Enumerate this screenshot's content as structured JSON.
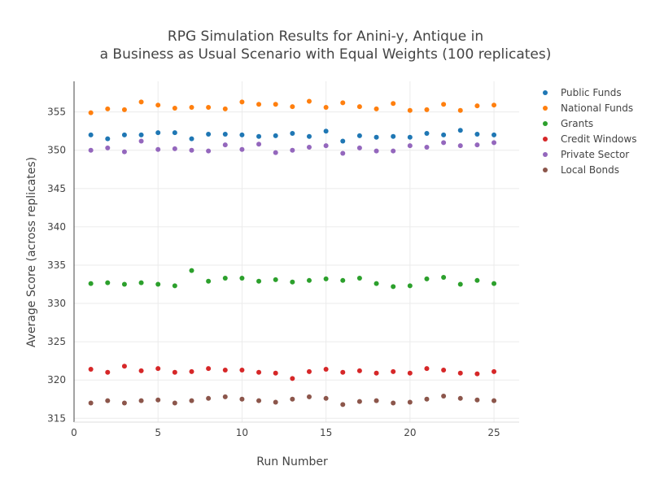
{
  "chart_data": {
    "type": "scatter",
    "title_lines": [
      "RPG Simulation Results for Anini-y, Antique in",
      "a Business as Usual Scenario with Equal Weights (100 replicates)"
    ],
    "xlabel": "Run Number",
    "ylabel": "Average Score (across replicates)",
    "xlim": [
      0,
      26.5
    ],
    "ylim": [
      314.5,
      359
    ],
    "xticks": [
      0,
      5,
      10,
      15,
      20,
      25
    ],
    "yticks": [
      315,
      320,
      325,
      330,
      335,
      340,
      345,
      350,
      355
    ],
    "grid": true,
    "legend_position": "top-right",
    "x": [
      1,
      2,
      3,
      4,
      5,
      6,
      7,
      8,
      9,
      10,
      11,
      12,
      13,
      14,
      15,
      16,
      17,
      18,
      19,
      20,
      21,
      22,
      23,
      24,
      25
    ],
    "series": [
      {
        "name": "Public Funds",
        "color": "#1f77b4",
        "values": [
          352.0,
          351.5,
          352.0,
          352.0,
          352.3,
          352.3,
          351.5,
          352.1,
          352.1,
          352.0,
          351.8,
          351.9,
          352.2,
          351.8,
          352.5,
          351.2,
          351.9,
          351.7,
          351.8,
          351.7,
          352.2,
          352.0,
          352.6,
          352.1,
          352.0
        ]
      },
      {
        "name": "National Funds",
        "color": "#ff7f0e",
        "values": [
          354.9,
          355.4,
          355.3,
          356.3,
          355.9,
          355.5,
          355.6,
          355.6,
          355.4,
          356.3,
          356.0,
          356.0,
          355.7,
          356.4,
          355.6,
          356.2,
          355.7,
          355.4,
          356.1,
          355.2,
          355.3,
          356.0,
          355.2,
          355.8,
          355.9
        ]
      },
      {
        "name": "Grants",
        "color": "#2ca02c",
        "values": [
          332.6,
          332.7,
          332.5,
          332.7,
          332.5,
          332.3,
          334.3,
          332.9,
          333.3,
          333.3,
          332.9,
          333.1,
          332.8,
          333.0,
          333.2,
          333.0,
          333.3,
          332.6,
          332.2,
          332.3,
          333.2,
          333.4,
          332.5,
          333.0,
          332.6
        ]
      },
      {
        "name": "Credit Windows",
        "color": "#d62728",
        "values": [
          321.4,
          321.0,
          321.8,
          321.2,
          321.5,
          321.0,
          321.1,
          321.5,
          321.3,
          321.3,
          321.0,
          320.9,
          320.2,
          321.1,
          321.4,
          321.0,
          321.2,
          320.9,
          321.1,
          320.9,
          321.5,
          321.3,
          320.9,
          320.8,
          321.1
        ]
      },
      {
        "name": "Private Sector",
        "color": "#9467bd",
        "values": [
          350.0,
          350.3,
          349.8,
          351.2,
          350.1,
          350.2,
          350.0,
          349.9,
          350.7,
          350.1,
          350.8,
          349.7,
          350.0,
          350.4,
          350.6,
          349.6,
          350.3,
          349.9,
          349.9,
          350.6,
          350.4,
          351.0,
          350.6,
          350.7,
          351.0
        ]
      },
      {
        "name": "Local Bonds",
        "color": "#8c564b",
        "values": [
          317.0,
          317.3,
          317.0,
          317.3,
          317.4,
          317.0,
          317.3,
          317.6,
          317.8,
          317.5,
          317.3,
          317.1,
          317.5,
          317.8,
          317.6,
          316.8,
          317.2,
          317.3,
          317.0,
          317.1,
          317.5,
          317.9,
          317.6,
          317.4,
          317.3
        ]
      }
    ]
  }
}
